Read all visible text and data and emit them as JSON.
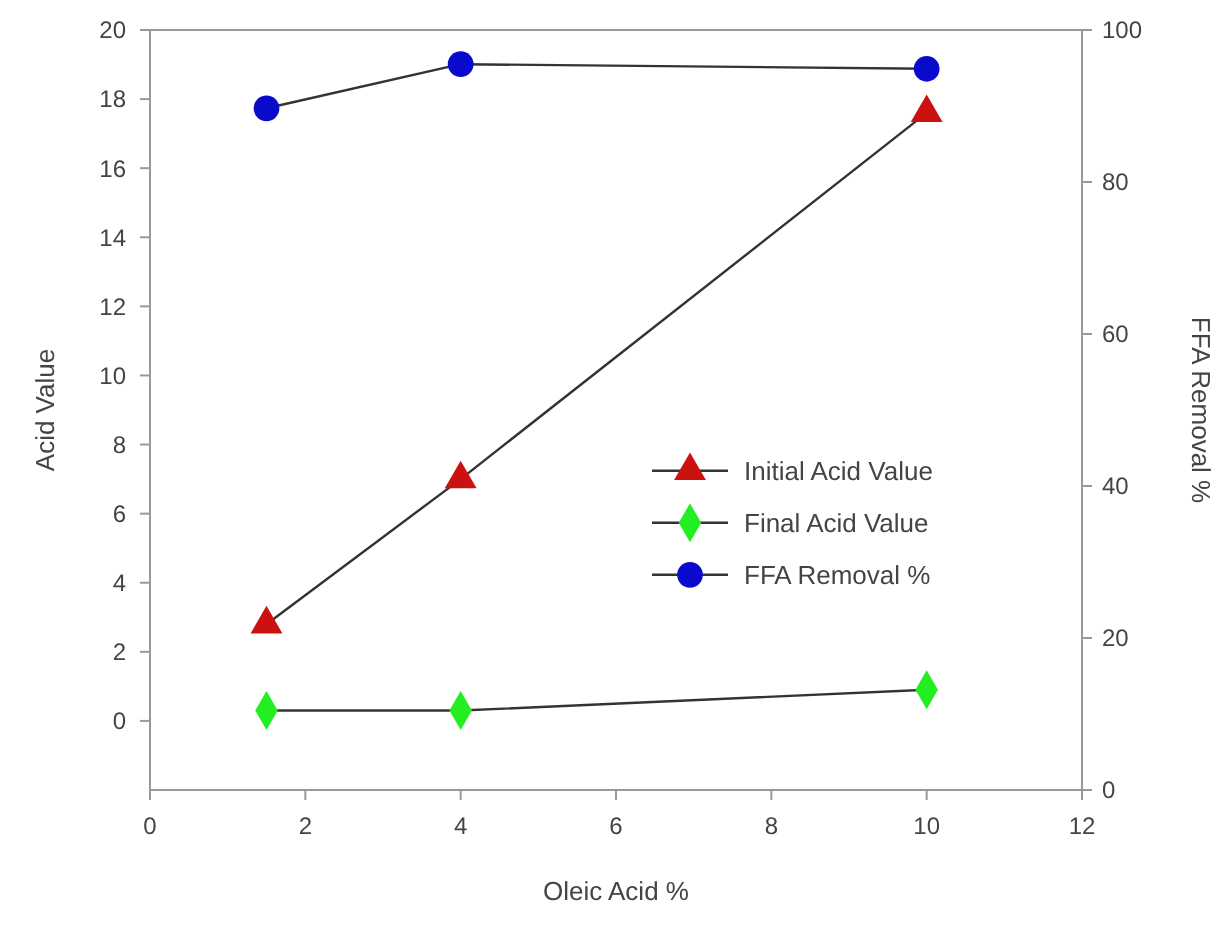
{
  "chart_data": {
    "type": "line",
    "xlabel": "Oleic Acid %",
    "ylabel": "Acid Value",
    "y2label": "FFA Removal %",
    "x": [
      1.5,
      4,
      10
    ],
    "xlim": [
      0,
      12
    ],
    "xticks": [
      0,
      2,
      4,
      6,
      8,
      10,
      12
    ],
    "ylim": [
      -2,
      20
    ],
    "yticks": [
      0,
      2,
      4,
      6,
      8,
      10,
      12,
      14,
      16,
      18,
      20
    ],
    "y2lim": [
      0,
      100
    ],
    "y2ticks": [
      0,
      20,
      40,
      60,
      80,
      100
    ],
    "grid": false,
    "legend": "right",
    "series": [
      {
        "name": "Initial Acid Value",
        "color": "#cc1111",
        "values": [
          2.8,
          7.0,
          17.6
        ],
        "marker": "triangle"
      },
      {
        "name": "Final Acid Value",
        "color": "#22ee22",
        "values": [
          0.3,
          0.3,
          0.9
        ],
        "marker": "diamond"
      },
      {
        "name": "FFA Removal %",
        "color": "#0a0acc",
        "values": [
          89.7,
          95.5,
          94.9
        ],
        "marker": "circle",
        "axis": "y2"
      }
    ]
  }
}
